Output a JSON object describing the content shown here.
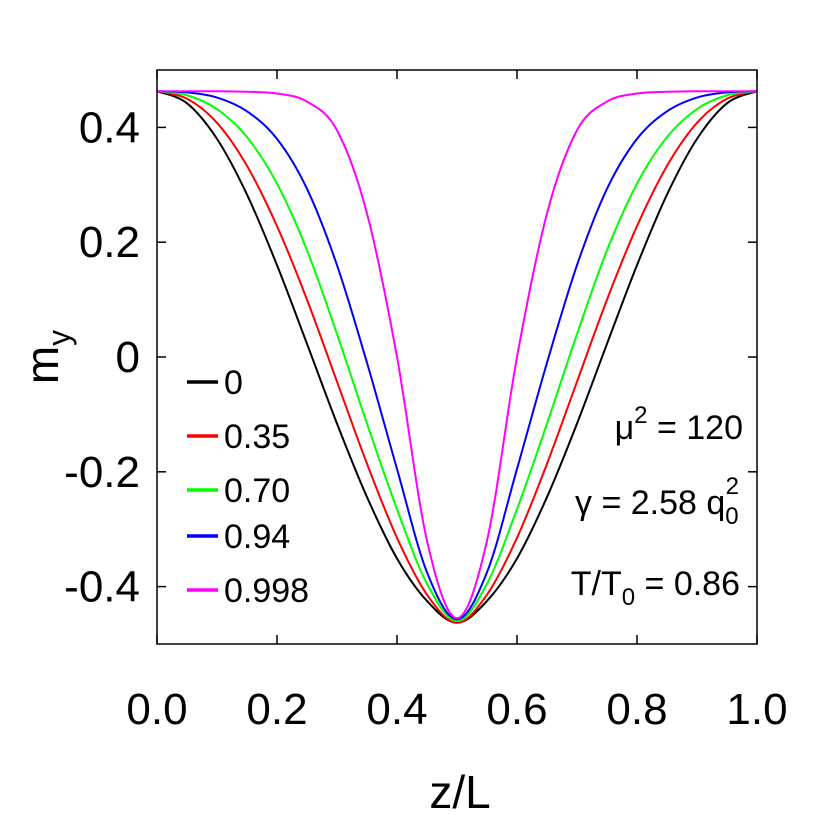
{
  "chart_data": {
    "type": "line",
    "xlabel": "z/L",
    "ylabel": {
      "base": "m",
      "sub": "y"
    },
    "xlim": [
      0.0,
      1.0
    ],
    "ylim": [
      -0.5,
      0.5
    ],
    "x_ticks": [
      0.0,
      0.2,
      0.4,
      0.6,
      0.8,
      1.0
    ],
    "x_tick_labels": [
      "0.0",
      "0.2",
      "0.4",
      "0.6",
      "0.8",
      "1.0"
    ],
    "y_ticks": [
      0.4,
      0.2,
      0,
      -0.2,
      -0.4
    ],
    "y_tick_labels": [
      "0.4",
      "0.2",
      "0",
      "-0.2",
      "-0.4"
    ],
    "grid": false,
    "legend_position": "lower-left",
    "x": [
      0.0,
      0.05,
      0.1,
      0.15,
      0.2,
      0.25,
      0.3,
      0.35,
      0.4,
      0.45,
      0.5,
      0.55,
      0.6,
      0.65,
      0.7,
      0.75,
      0.8,
      0.85,
      0.9,
      0.95,
      1.0
    ],
    "series": [
      {
        "name": "0",
        "color": "#000000",
        "values": [
          0.463,
          0.442,
          0.38,
          0.283,
          0.16,
          0.023,
          -0.116,
          -0.244,
          -0.351,
          -0.425,
          -0.463,
          -0.425,
          -0.351,
          -0.244,
          -0.116,
          0.023,
          0.16,
          0.283,
          0.38,
          0.442,
          0.463
        ]
      },
      {
        "name": "0.35",
        "color": "#ff0000",
        "values": [
          0.463,
          0.45,
          0.408,
          0.333,
          0.228,
          0.1,
          -0.043,
          -0.186,
          -0.315,
          -0.414,
          -0.463,
          -0.414,
          -0.315,
          -0.186,
          -0.043,
          0.1,
          0.228,
          0.333,
          0.408,
          0.45,
          0.463
        ]
      },
      {
        "name": "0.70",
        "color": "#00ff00",
        "values": [
          0.463,
          0.456,
          0.432,
          0.383,
          0.302,
          0.186,
          0.04,
          -0.116,
          -0.265,
          -0.395,
          -0.46,
          -0.395,
          -0.265,
          -0.116,
          0.04,
          0.186,
          0.302,
          0.383,
          0.432,
          0.456,
          0.463
        ]
      },
      {
        "name": "0.94",
        "color": "#0000ff",
        "values": [
          0.463,
          0.461,
          0.452,
          0.428,
          0.38,
          0.293,
          0.16,
          -0.01,
          -0.195,
          -0.375,
          -0.457,
          -0.375,
          -0.195,
          -0.01,
          0.16,
          0.293,
          0.38,
          0.428,
          0.452,
          0.461,
          0.463
        ]
      },
      {
        "name": "0.998",
        "color": "#ff00ff",
        "values": [
          0.463,
          0.463,
          0.463,
          0.462,
          0.459,
          0.445,
          0.395,
          0.25,
          0.0,
          -0.32,
          -0.455,
          -0.32,
          0.0,
          0.25,
          0.395,
          0.445,
          0.459,
          0.462,
          0.463,
          0.463,
          0.463
        ]
      }
    ],
    "annotations": {
      "mu": {
        "base": "μ",
        "sup": "2",
        "rest": " = 120"
      },
      "gamma": {
        "base": "γ = 2.58 q",
        "sub": "0",
        "sup": "2"
      },
      "temp": {
        "base": "T/T",
        "sub": "0",
        "rest": " = 0.86"
      }
    }
  }
}
